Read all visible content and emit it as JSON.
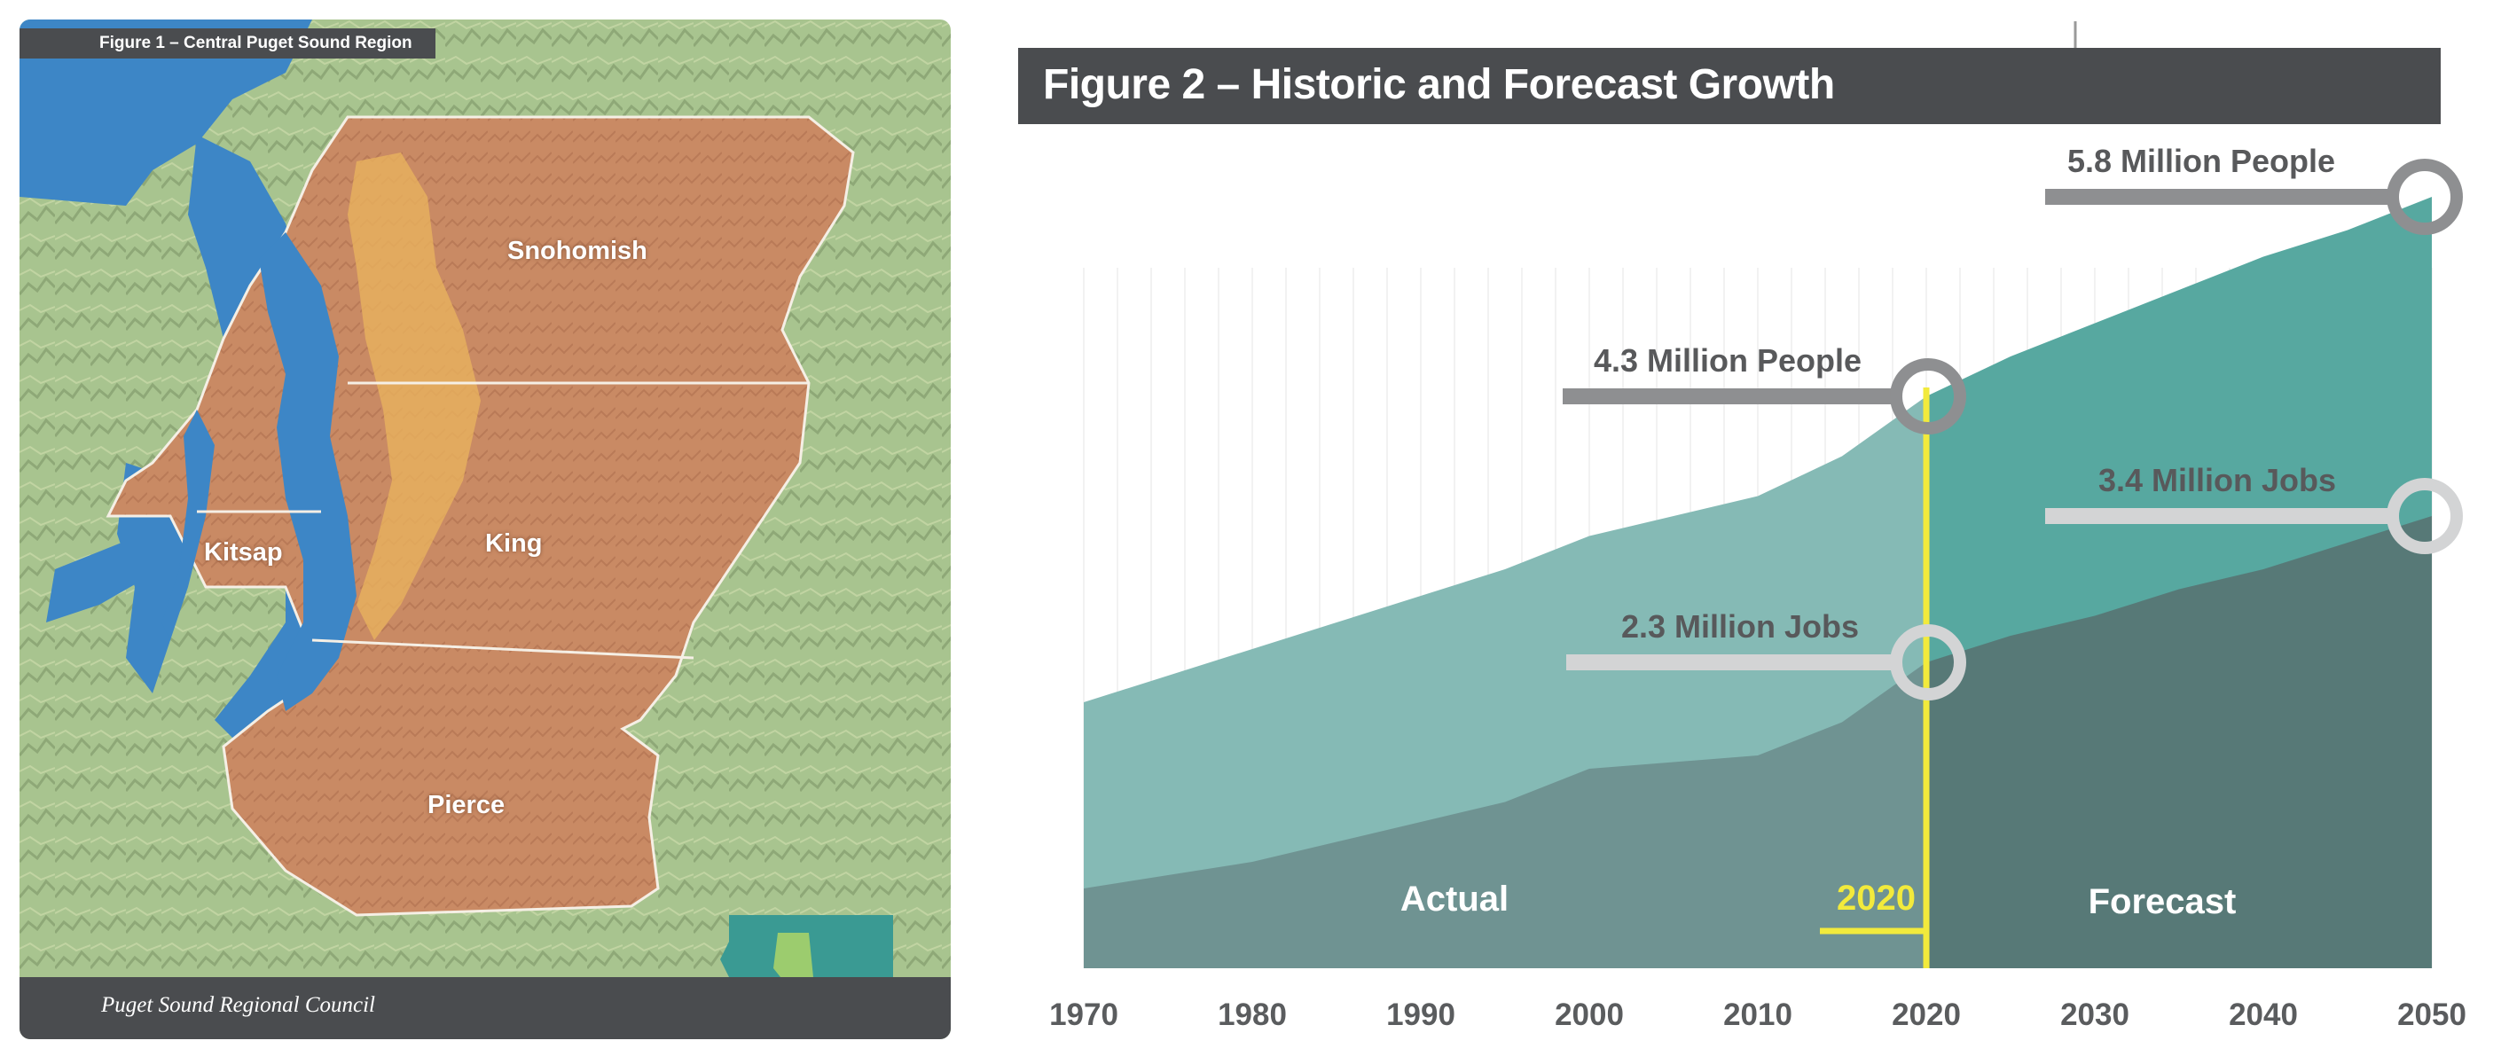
{
  "map": {
    "title": "Figure 1 – Central Puget Sound Region",
    "footer": "Puget Sound Regional Council",
    "counties": [
      "Snohomish",
      "King",
      "Kitsap",
      "Pierce"
    ],
    "colors": {
      "land": "#9cb88a",
      "water": "#3d86c6",
      "region": "#c98a64",
      "urban": "#e9b15e",
      "state": "#3a9a93"
    }
  },
  "chart_data": {
    "type": "area",
    "title": "Figure 2 – Historic and Forecast Growth",
    "x": [
      1970,
      1975,
      1980,
      1985,
      1990,
      1995,
      2000,
      2005,
      2010,
      2015,
      2020,
      2025,
      2030,
      2035,
      2040,
      2045,
      2050
    ],
    "series": [
      {
        "name": "People (millions)",
        "values": [
          2.0,
          2.2,
          2.4,
          2.6,
          2.8,
          3.0,
          3.25,
          3.4,
          3.55,
          3.85,
          4.3,
          4.6,
          4.85,
          5.1,
          5.35,
          5.55,
          5.8
        ]
      },
      {
        "name": "Jobs (millions)",
        "values": [
          0.6,
          0.7,
          0.8,
          0.95,
          1.1,
          1.25,
          1.5,
          1.55,
          1.6,
          1.85,
          2.3,
          2.5,
          2.65,
          2.85,
          3.0,
          3.2,
          3.4
        ]
      }
    ],
    "ylim": [
      0,
      6
    ],
    "xticks": [
      "1970",
      "1980",
      "1990",
      "2000",
      "2010",
      "2020",
      "2030",
      "2040",
      "2050"
    ],
    "divider_year": 2020,
    "divider_label": "2020",
    "region_labels": {
      "actual": "Actual",
      "forecast": "Forecast"
    },
    "callouts": {
      "people_2020": "4.3 Million People",
      "jobs_2020": "2.3 Million Jobs",
      "people_2050": "5.8 Million People",
      "jobs_2050": "3.4 Million Jobs"
    },
    "colors": {
      "people_actual": "#85bab5",
      "jobs_actual": "#6f9392",
      "people_forecast": "#57a8a0",
      "jobs_forecast": "#577977",
      "divider": "#f2ea3c",
      "people_marker": "#8e8f91",
      "jobs_marker": "#d3d4d5",
      "header": "#4a4c4f"
    }
  }
}
